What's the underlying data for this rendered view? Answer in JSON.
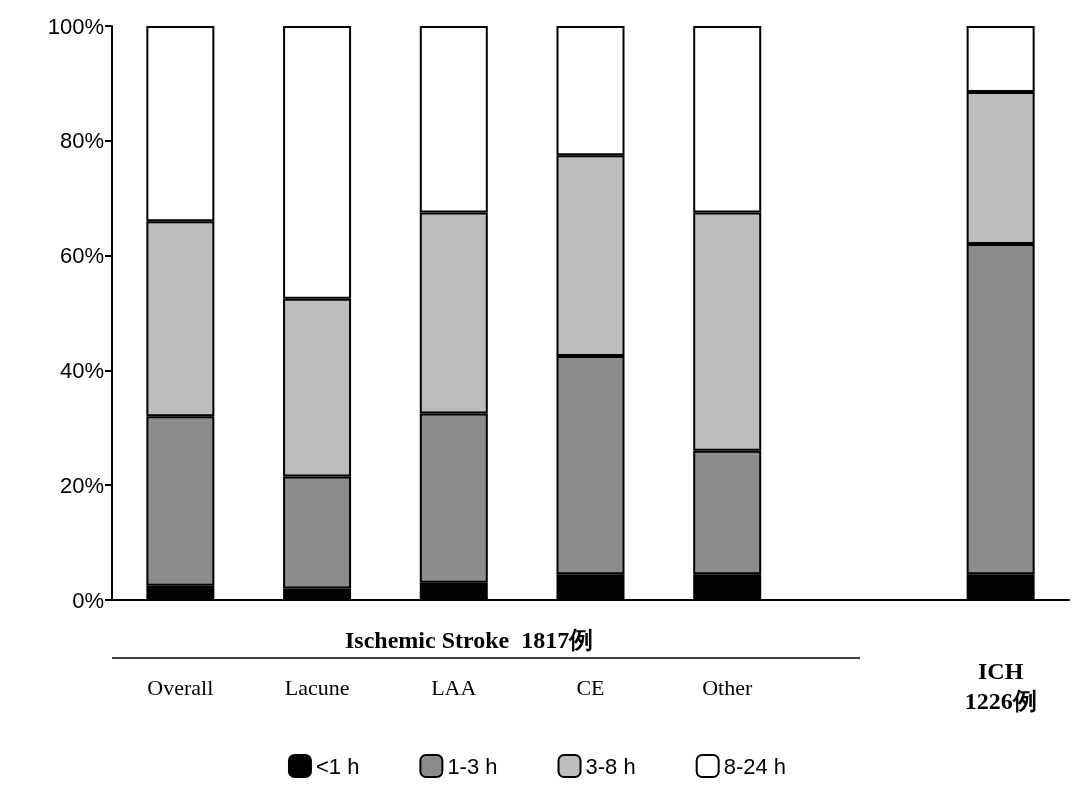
{
  "chart_data": {
    "type": "bar",
    "stacked": true,
    "categories": [
      "Overall",
      "Lacune",
      "LAA",
      "CE",
      "Other",
      null,
      "ICH\n1226例"
    ],
    "series": [
      {
        "name": "<1 h",
        "color": "#000000",
        "values": [
          2.5,
          2,
          3,
          4.5,
          4.5,
          null,
          4.5
        ]
      },
      {
        "name": "1-3 h",
        "color": "#8c8c8c",
        "values": [
          29.5,
          19.5,
          29.5,
          38,
          21.5,
          null,
          57.5
        ]
      },
      {
        "name": "3-8 h",
        "color": "#bdbdbd",
        "values": [
          34,
          31,
          35,
          35,
          41.5,
          null,
          26.5
        ]
      },
      {
        "name": "8-24 h",
        "color": "#ffffff",
        "values": [
          34,
          47.5,
          32.5,
          22.5,
          32.5,
          null,
          11.5
        ]
      }
    ],
    "ylim": [
      0,
      100
    ],
    "yticks": [
      {
        "value": 0,
        "label": "0%"
      },
      {
        "value": 20,
        "label": "20%"
      },
      {
        "value": 40,
        "label": "40%"
      },
      {
        "value": 60,
        "label": "60%"
      },
      {
        "value": 80,
        "label": "80%"
      },
      {
        "value": 100,
        "label": "100%"
      }
    ],
    "grid": false,
    "legend": "bottom",
    "annotations": [
      "Ischemic Stroke  1817例"
    ]
  }
}
